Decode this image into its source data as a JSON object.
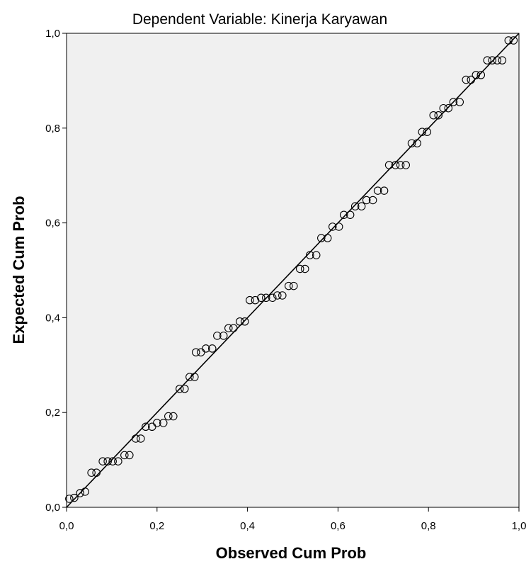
{
  "chart_data": {
    "type": "scatter",
    "title": "Dependent Variable: Kinerja Karyawan",
    "xlabel": "Observed Cum Prob",
    "ylabel": "Expected Cum Prob",
    "xlim": [
      0,
      1
    ],
    "ylim": [
      0,
      1
    ],
    "x_ticks": [
      "0,0",
      "0,2",
      "0,4",
      "0,6",
      "0,8",
      "1,0"
    ],
    "y_ticks": [
      "0,0",
      "0,2",
      "0,4",
      "0,6",
      "0,8",
      "1,0"
    ],
    "grid": false,
    "legend": "none",
    "reference_line": {
      "x": [
        0,
        1
      ],
      "y": [
        0,
        1
      ]
    },
    "colors": {
      "plot_background": "#f0f0f0",
      "marker": "#000000",
      "line": "#000000"
    },
    "series": [
      {
        "x": [
          0.006,
          0.017,
          0.03,
          0.041,
          0.055,
          0.066,
          0.08,
          0.091,
          0.102,
          0.114,
          0.128,
          0.139,
          0.153,
          0.164,
          0.175,
          0.189,
          0.2,
          0.214,
          0.225,
          0.236,
          0.25,
          0.261,
          0.272,
          0.283,
          0.286,
          0.297,
          0.308,
          0.322,
          0.333,
          0.347,
          0.358,
          0.369,
          0.383,
          0.394,
          0.405,
          0.417,
          0.43,
          0.441,
          0.455,
          0.466,
          0.477,
          0.491,
          0.502,
          0.516,
          0.527,
          0.538,
          0.552,
          0.563,
          0.577,
          0.588,
          0.602,
          0.613,
          0.627,
          0.638,
          0.652,
          0.663,
          0.677,
          0.688,
          0.702,
          0.713,
          0.727,
          0.738,
          0.75,
          0.763,
          0.775,
          0.786,
          0.797,
          0.811,
          0.822,
          0.833,
          0.844,
          0.855,
          0.869,
          0.883,
          0.894,
          0.905,
          0.916,
          0.93,
          0.941,
          0.952,
          0.963,
          0.977,
          0.988
        ],
        "y": [
          0.018,
          0.02,
          0.03,
          0.033,
          0.073,
          0.073,
          0.097,
          0.097,
          0.097,
          0.097,
          0.11,
          0.11,
          0.145,
          0.145,
          0.17,
          0.17,
          0.178,
          0.178,
          0.192,
          0.192,
          0.25,
          0.25,
          0.275,
          0.275,
          0.327,
          0.327,
          0.335,
          0.335,
          0.362,
          0.362,
          0.378,
          0.378,
          0.392,
          0.392,
          0.437,
          0.437,
          0.442,
          0.442,
          0.442,
          0.447,
          0.447,
          0.467,
          0.467,
          0.503,
          0.503,
          0.532,
          0.532,
          0.568,
          0.568,
          0.592,
          0.592,
          0.617,
          0.617,
          0.635,
          0.635,
          0.648,
          0.648,
          0.668,
          0.668,
          0.722,
          0.722,
          0.722,
          0.722,
          0.768,
          0.768,
          0.792,
          0.792,
          0.827,
          0.827,
          0.842,
          0.842,
          0.855,
          0.855,
          0.902,
          0.902,
          0.912,
          0.912,
          0.943,
          0.943,
          0.943,
          0.943,
          0.985,
          0.985
        ]
      }
    ]
  }
}
